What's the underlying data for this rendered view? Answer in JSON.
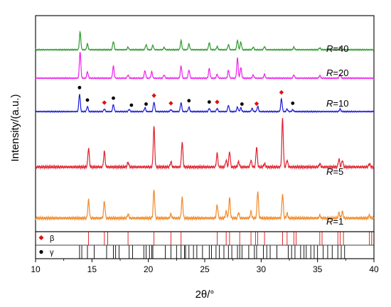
{
  "chart_data": {
    "type": "line",
    "xlabel": "2θ/°",
    "ylabel": "Intensity/(a.u.)",
    "xlim": [
      10,
      40
    ],
    "x_ticks": [
      "10",
      "15",
      "20",
      "25",
      "30",
      "35",
      "40"
    ],
    "grid": false,
    "series": [
      {
        "name": "R=40",
        "label_prefix": "R",
        "label_suffix": "=40",
        "color": "#2e9a2e",
        "baseline_frac": 0.0,
        "peaks": [
          [
            13.95,
            0.55
          ],
          [
            14.6,
            0.18
          ],
          [
            16.9,
            0.26
          ],
          [
            18.2,
            0.08
          ],
          [
            19.8,
            0.16
          ],
          [
            20.4,
            0.14
          ],
          [
            21.4,
            0.07
          ],
          [
            22.9,
            0.28
          ],
          [
            23.6,
            0.18
          ],
          [
            25.4,
            0.22
          ],
          [
            26.1,
            0.1
          ],
          [
            27.1,
            0.16
          ],
          [
            27.9,
            0.3
          ],
          [
            28.2,
            0.24
          ],
          [
            29.3,
            0.08
          ],
          [
            30.3,
            0.1
          ],
          [
            32.9,
            0.08
          ],
          [
            35.2,
            0.06
          ],
          [
            37.0,
            0.09
          ]
        ]
      },
      {
        "name": "R=20",
        "label_prefix": "R",
        "label_suffix": "=20",
        "color": "#ee22ee",
        "baseline_frac": 0.0,
        "peaks": [
          [
            13.95,
            0.83
          ],
          [
            14.6,
            0.2
          ],
          [
            16.9,
            0.38
          ],
          [
            18.2,
            0.1
          ],
          [
            19.7,
            0.24
          ],
          [
            20.3,
            0.2
          ],
          [
            21.4,
            0.1
          ],
          [
            22.9,
            0.38
          ],
          [
            23.6,
            0.26
          ],
          [
            25.4,
            0.3
          ],
          [
            26.1,
            0.12
          ],
          [
            27.1,
            0.24
          ],
          [
            27.9,
            0.63
          ],
          [
            28.2,
            0.34
          ],
          [
            29.3,
            0.1
          ],
          [
            30.3,
            0.12
          ],
          [
            32.9,
            0.1
          ],
          [
            35.2,
            0.08
          ],
          [
            37.0,
            0.12
          ]
        ]
      },
      {
        "name": "R=10",
        "label_prefix": "R",
        "label_suffix": "=10",
        "color": "#1a1ad8",
        "baseline_frac": 0.0,
        "peaks": [
          [
            13.9,
            0.55
          ],
          [
            14.6,
            0.16
          ],
          [
            16.1,
            0.08
          ],
          [
            16.9,
            0.22
          ],
          [
            18.3,
            0.07
          ],
          [
            19.7,
            0.12
          ],
          [
            20.5,
            0.3
          ],
          [
            22.0,
            0.06
          ],
          [
            22.9,
            0.28
          ],
          [
            23.6,
            0.14
          ],
          [
            25.4,
            0.1
          ],
          [
            26.1,
            0.1
          ],
          [
            27.1,
            0.2
          ],
          [
            27.9,
            0.14
          ],
          [
            28.2,
            0.12
          ],
          [
            29.2,
            0.1
          ],
          [
            29.7,
            0.16
          ],
          [
            31.8,
            0.4
          ],
          [
            32.3,
            0.08
          ],
          [
            32.8,
            0.06
          ],
          [
            37.0,
            0.08
          ]
        ]
      },
      {
        "name": "R=5",
        "label_prefix": "R",
        "label_suffix": "=5",
        "color": "#e0202e",
        "baseline_frac": 0.0,
        "peaks": [
          [
            14.7,
            0.28
          ],
          [
            16.1,
            0.23
          ],
          [
            18.2,
            0.07
          ],
          [
            20.5,
            0.6
          ],
          [
            22.0,
            0.08
          ],
          [
            23.0,
            0.37
          ],
          [
            26.1,
            0.2
          ],
          [
            26.9,
            0.1
          ],
          [
            27.2,
            0.23
          ],
          [
            28.0,
            0.08
          ],
          [
            29.1,
            0.1
          ],
          [
            29.6,
            0.3
          ],
          [
            30.3,
            0.05
          ],
          [
            31.9,
            0.72
          ],
          [
            32.3,
            0.1
          ],
          [
            35.2,
            0.05
          ],
          [
            36.9,
            0.12
          ],
          [
            37.2,
            0.1
          ],
          [
            39.6,
            0.05
          ]
        ]
      },
      {
        "name": "R=1",
        "label_prefix": "R",
        "label_suffix": "=1",
        "color": "#f08a2a",
        "baseline_frac": 0.0,
        "peaks": [
          [
            14.7,
            0.27
          ],
          [
            16.1,
            0.25
          ],
          [
            18.2,
            0.06
          ],
          [
            20.5,
            0.42
          ],
          [
            22.0,
            0.06
          ],
          [
            23.0,
            0.3
          ],
          [
            26.1,
            0.2
          ],
          [
            26.9,
            0.1
          ],
          [
            27.2,
            0.3
          ],
          [
            28.0,
            0.08
          ],
          [
            29.1,
            0.1
          ],
          [
            29.7,
            0.4
          ],
          [
            31.9,
            0.36
          ],
          [
            32.3,
            0.07
          ],
          [
            35.2,
            0.04
          ],
          [
            36.9,
            0.08
          ],
          [
            37.2,
            0.1
          ],
          [
            39.6,
            0.04
          ]
        ]
      }
    ],
    "markers": {
      "beta": {
        "symbol": "β",
        "color": "#e01010",
        "on_R10": [
          16.1,
          22.0,
          26.1,
          29.6,
          31.8
        ],
        "r10_diamond_extra": [
          20.5
        ]
      },
      "gamma": {
        "symbol": "γ",
        "color": "#000000",
        "on_R10": [
          13.9,
          14.6,
          16.9,
          18.5,
          19.8,
          23.6,
          25.4,
          28.3,
          32.8
        ]
      }
    },
    "reference_bars": {
      "beta": [
        14.7,
        16.1,
        16.4,
        18.2,
        20.5,
        22.0,
        22.9,
        26.1,
        26.9,
        27.2,
        28.1,
        29.1,
        29.5,
        29.7,
        30.3,
        31.9,
        32.3,
        32.9,
        33.1,
        35.2,
        35.4,
        36.8,
        37.0,
        37.3,
        39.6,
        39.8
      ],
      "gamma": [
        13.9,
        14.1,
        14.6,
        15.2,
        16.3,
        16.9,
        17.1,
        17.4,
        18.3,
        18.6,
        19.6,
        19.8,
        20.1,
        20.3,
        20.4,
        21.5,
        22.0,
        22.5,
        22.9,
        23.2,
        23.3,
        23.6,
        24.0,
        24.3,
        24.8,
        25.4,
        25.6,
        26.0,
        26.3,
        26.7,
        27.1,
        27.4,
        27.9,
        28.1,
        28.3,
        28.9,
        29.4,
        29.6,
        30.2,
        30.5,
        30.8,
        31.4,
        32.4,
        32.7,
        33.0,
        33.5,
        33.8,
        34.0,
        34.4,
        34.7,
        35.0,
        35.5,
        35.9,
        36.3,
        36.8,
        37.1,
        37.4
      ]
    }
  }
}
